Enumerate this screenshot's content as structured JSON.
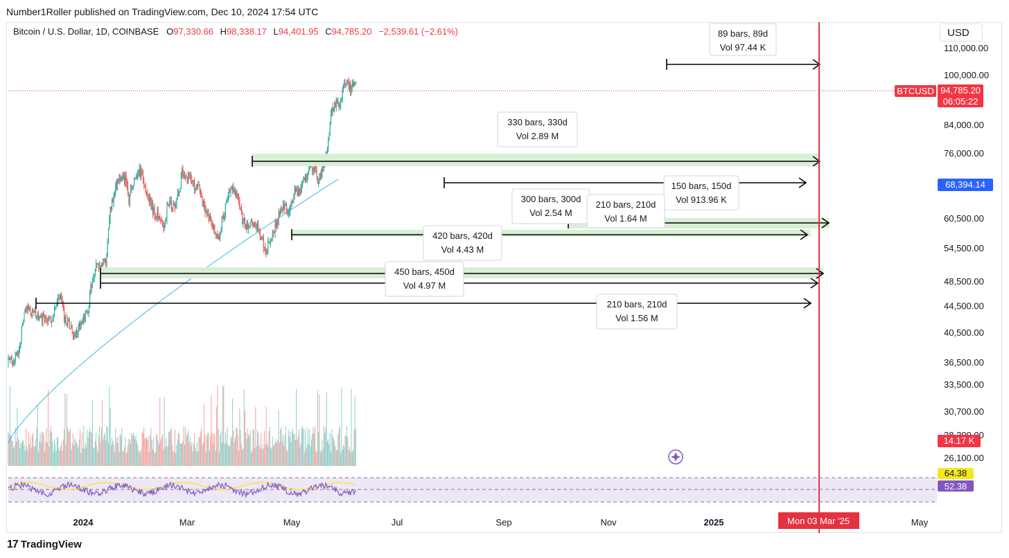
{
  "header": {
    "published": "Number1Roller published on TradingView.com, Dec 10, 2024 17:54 UTC",
    "symbol": "Bitcoin / U.S. Dollar, 1D, COINBASE",
    "o_label": "O",
    "o": "97,330.66",
    "h_label": "H",
    "h": "98,338.17",
    "l_label": "L",
    "l": "94,401.95",
    "c_label": "C",
    "c": "94,785.20",
    "change": "−2,539.61 (−2.61%)",
    "currency": "USD"
  },
  "footer": {
    "brand": "TradingView",
    "logo": "17"
  },
  "chart_data": {
    "type": "candlestick",
    "title": "Bitcoin / U.S. Dollar, 1D, COINBASE",
    "y_scale": "log",
    "y_ticks": [
      "110,000.00",
      "100,000.00",
      "84,000.00",
      "76,000.00",
      "60,500.00",
      "54,500.00",
      "48,500.00",
      "44,500.00",
      "40,500.00",
      "36,500.00",
      "33,500.00",
      "30,700.00",
      "28,300.00",
      "26,100.00"
    ],
    "y_tick_values": [
      110000,
      100000,
      84000,
      76000,
      60500,
      54500,
      48500,
      44500,
      40500,
      36500,
      33500,
      30700,
      28300,
      26100
    ],
    "x_ticks": [
      {
        "label": "2024",
        "bold": true
      },
      {
        "label": "Mar"
      },
      {
        "label": "May"
      },
      {
        "label": "Jul"
      },
      {
        "label": "Sep"
      },
      {
        "label": "Nov"
      },
      {
        "label": "2025",
        "bold": true
      },
      {
        "label": "May"
      }
    ],
    "price_badges": [
      {
        "label": "BTCUSD",
        "value": "94,785.20",
        "sub": "06:05:22",
        "color": "#f23645"
      },
      {
        "label": "",
        "value": "68,394.14",
        "color": "#2962ff"
      },
      {
        "label": "",
        "value": "14.17 K",
        "color": "#f23645"
      }
    ],
    "rsi": {
      "values": [
        "64.38",
        "52.38"
      ],
      "colors": [
        "#f5e71e",
        "#7e57c2"
      ]
    },
    "vertical_marker": {
      "label": "Mon 03 Mar '25",
      "color": "#f23645"
    },
    "projection_boxes": [
      {
        "line1": "89 bars, 89d",
        "line2": "Vol 97.44 K"
      },
      {
        "line1": "330 bars, 330d",
        "line2": "Vol 2.89 M"
      },
      {
        "line1": "150 bars, 150d",
        "line2": "Vol 913.96 K"
      },
      {
        "line1": "300 bars, 300d",
        "line2": "Vol 2.54 M"
      },
      {
        "line1": "210 bars, 210d",
        "line2": "Vol 1.64 M"
      },
      {
        "line1": "420 bars, 420d",
        "line2": "Vol 4.43 M"
      },
      {
        "line1": "450 bars, 450d",
        "line2": "Vol 4.97 M"
      },
      {
        "line1": "210 bars, 210d",
        "line2": "Vol 1.56 M"
      }
    ],
    "colors": {
      "up": "#26a69a",
      "down": "#ef5350",
      "ma": "#5ec1e8",
      "zone": "#d8efd6",
      "marker": "#e5323f"
    }
  }
}
